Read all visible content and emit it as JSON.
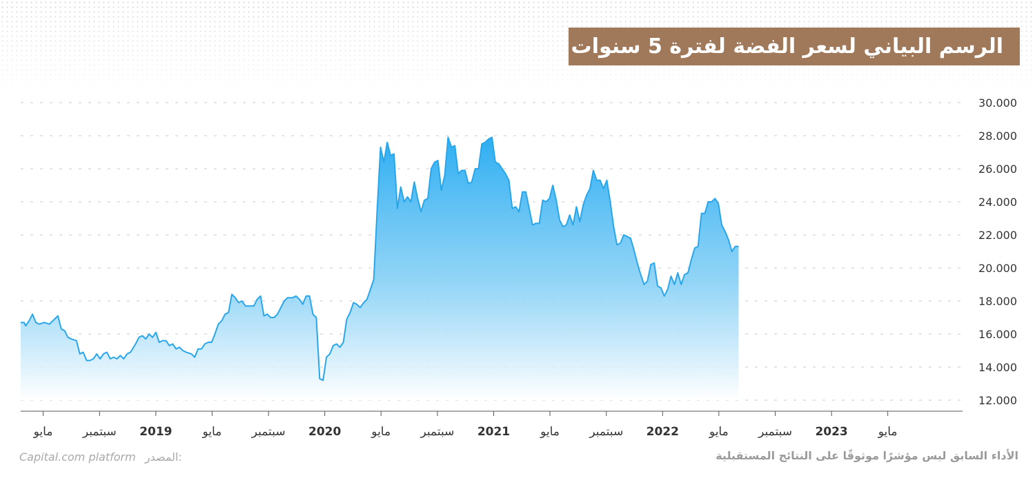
{
  "title": "الرسم البياني لسعر الفضة لفترة 5 سنوات",
  "footer": {
    "disclaimer": "الأداء السابق ليس مؤشرًا موثوقًا على النتائج المستقبلية",
    "source_label": "المصدر:",
    "source_name": "Capital.com platform"
  },
  "colors": {
    "title_bg": "#a0785a",
    "line": "#29a6ea",
    "fill_top": "#2eaef2",
    "fill_bottom": "#ffffff",
    "grid": "#c8c8c8"
  },
  "chart_data": {
    "type": "area",
    "title": "الرسم البياني لسعر الفضة لفترة 5 سنوات",
    "xlabel": "",
    "ylabel": "",
    "ylim": [
      12,
      30
    ],
    "xlim": [
      2018.2,
      2023.6
    ],
    "y_ticks": [
      12,
      14,
      16,
      18,
      20,
      22,
      24,
      26,
      28,
      30
    ],
    "y_tick_labels": [
      "12.000",
      "14.000",
      "16.000",
      "18.000",
      "20.000",
      "22.000",
      "24.000",
      "26.000",
      "28.000",
      "30.000"
    ],
    "x_ticks": [
      {
        "pos": 2018.333,
        "label": "مايو",
        "bold": false
      },
      {
        "pos": 2018.667,
        "label": "سبتمبر",
        "bold": false
      },
      {
        "pos": 2019.0,
        "label": "2019",
        "bold": true
      },
      {
        "pos": 2019.333,
        "label": "مايو",
        "bold": false
      },
      {
        "pos": 2019.667,
        "label": "سبتمبر",
        "bold": false
      },
      {
        "pos": 2020.0,
        "label": "2020",
        "bold": true
      },
      {
        "pos": 2020.333,
        "label": "مايو",
        "bold": false
      },
      {
        "pos": 2020.667,
        "label": "سبتمبر",
        "bold": false
      },
      {
        "pos": 2021.0,
        "label": "2021",
        "bold": true
      },
      {
        "pos": 2021.333,
        "label": "مايو",
        "bold": false
      },
      {
        "pos": 2021.667,
        "label": "سبتمبر",
        "bold": false
      },
      {
        "pos": 2022.0,
        "label": "2022",
        "bold": true
      },
      {
        "pos": 2022.333,
        "label": "مايو",
        "bold": false
      },
      {
        "pos": 2022.667,
        "label": "سبتمبر",
        "bold": false
      },
      {
        "pos": 2023.0,
        "label": "2023",
        "bold": true
      },
      {
        "pos": 2023.333,
        "label": "مايو",
        "bold": false
      }
    ],
    "grid": true,
    "series": [
      {
        "points": [
          [
            2018.2,
            16.7
          ],
          [
            2018.22,
            16.7
          ],
          [
            2018.23,
            16.5
          ],
          [
            2018.25,
            16.8
          ],
          [
            2018.27,
            17.2
          ],
          [
            2018.29,
            16.7
          ],
          [
            2018.31,
            16.6
          ],
          [
            2018.34,
            16.7
          ],
          [
            2018.37,
            16.6
          ],
          [
            2018.39,
            16.8
          ],
          [
            2018.42,
            17.1
          ],
          [
            2018.44,
            16.3
          ],
          [
            2018.46,
            16.2
          ],
          [
            2018.48,
            15.8
          ],
          [
            2018.5,
            15.7
          ],
          [
            2018.53,
            15.6
          ],
          [
            2018.55,
            14.8
          ],
          [
            2018.57,
            14.9
          ],
          [
            2018.59,
            14.4
          ],
          [
            2018.61,
            14.4
          ],
          [
            2018.63,
            14.5
          ],
          [
            2018.65,
            14.8
          ],
          [
            2018.67,
            14.5
          ],
          [
            2018.69,
            14.8
          ],
          [
            2018.71,
            14.9
          ],
          [
            2018.73,
            14.5
          ],
          [
            2018.75,
            14.6
          ],
          [
            2018.77,
            14.5
          ],
          [
            2018.79,
            14.7
          ],
          [
            2018.81,
            14.5
          ],
          [
            2018.83,
            14.8
          ],
          [
            2018.85,
            14.9
          ],
          [
            2018.88,
            15.4
          ],
          [
            2018.9,
            15.8
          ],
          [
            2018.92,
            15.9
          ],
          [
            2018.94,
            15.7
          ],
          [
            2018.96,
            16.0
          ],
          [
            2018.98,
            15.8
          ],
          [
            2019.0,
            16.1
          ],
          [
            2019.02,
            15.5
          ],
          [
            2019.04,
            15.6
          ],
          [
            2019.06,
            15.6
          ],
          [
            2019.08,
            15.3
          ],
          [
            2019.1,
            15.4
          ],
          [
            2019.12,
            15.1
          ],
          [
            2019.14,
            15.2
          ],
          [
            2019.16,
            15.0
          ],
          [
            2019.18,
            14.9
          ],
          [
            2019.21,
            14.8
          ],
          [
            2019.23,
            14.6
          ],
          [
            2019.25,
            15.1
          ],
          [
            2019.27,
            15.1
          ],
          [
            2019.29,
            15.4
          ],
          [
            2019.31,
            15.5
          ],
          [
            2019.33,
            15.5
          ],
          [
            2019.35,
            16.0
          ],
          [
            2019.37,
            16.6
          ],
          [
            2019.39,
            16.8
          ],
          [
            2019.41,
            17.2
          ],
          [
            2019.43,
            17.3
          ],
          [
            2019.45,
            18.4
          ],
          [
            2019.47,
            18.2
          ],
          [
            2019.49,
            17.9
          ],
          [
            2019.51,
            18.0
          ],
          [
            2019.53,
            17.7
          ],
          [
            2019.56,
            17.7
          ],
          [
            2019.58,
            17.7
          ],
          [
            2019.6,
            18.1
          ],
          [
            2019.62,
            18.3
          ],
          [
            2019.64,
            17.1
          ],
          [
            2019.66,
            17.2
          ],
          [
            2019.68,
            17.0
          ],
          [
            2019.7,
            17.0
          ],
          [
            2019.72,
            17.2
          ],
          [
            2019.74,
            17.6
          ],
          [
            2019.76,
            18.0
          ],
          [
            2019.78,
            18.2
          ],
          [
            2019.81,
            18.2
          ],
          [
            2019.83,
            18.3
          ],
          [
            2019.85,
            18.1
          ],
          [
            2019.87,
            17.8
          ],
          [
            2019.89,
            18.3
          ],
          [
            2019.91,
            18.3
          ],
          [
            2019.93,
            17.2
          ],
          [
            2019.95,
            17.0
          ],
          [
            2019.97,
            13.3
          ],
          [
            2019.99,
            13.2
          ],
          [
            2020.01,
            14.6
          ],
          [
            2020.03,
            14.8
          ],
          [
            2020.05,
            15.3
          ],
          [
            2020.07,
            15.4
          ],
          [
            2020.09,
            15.2
          ],
          [
            2020.11,
            15.5
          ],
          [
            2020.13,
            16.9
          ],
          [
            2020.15,
            17.3
          ],
          [
            2020.17,
            17.9
          ],
          [
            2020.19,
            17.8
          ],
          [
            2020.21,
            17.6
          ],
          [
            2020.23,
            17.9
          ],
          [
            2020.25,
            18.1
          ],
          [
            2020.27,
            18.7
          ],
          [
            2020.29,
            19.3
          ],
          [
            2020.31,
            23.5
          ],
          [
            2020.33,
            27.3
          ],
          [
            2020.35,
            26.4
          ],
          [
            2020.37,
            27.6
          ],
          [
            2020.39,
            26.8
          ],
          [
            2020.41,
            26.9
          ],
          [
            2020.43,
            23.6
          ],
          [
            2020.45,
            24.9
          ],
          [
            2020.47,
            24.0
          ],
          [
            2020.49,
            24.3
          ],
          [
            2020.51,
            24.0
          ],
          [
            2020.53,
            25.2
          ],
          [
            2020.55,
            24.2
          ],
          [
            2020.57,
            23.4
          ],
          [
            2020.59,
            24.1
          ],
          [
            2020.61,
            24.2
          ],
          [
            2020.63,
            26.0
          ],
          [
            2020.65,
            26.4
          ],
          [
            2020.67,
            26.5
          ],
          [
            2020.69,
            24.7
          ],
          [
            2020.71,
            25.6
          ],
          [
            2020.73,
            27.9
          ],
          [
            2020.75,
            27.3
          ],
          [
            2020.77,
            27.4
          ],
          [
            2020.79,
            25.7
          ],
          [
            2020.81,
            25.9
          ],
          [
            2020.83,
            25.9
          ],
          [
            2020.85,
            25.1
          ],
          [
            2020.87,
            25.2
          ],
          [
            2020.89,
            26.0
          ],
          [
            2020.91,
            26.0
          ],
          [
            2020.93,
            27.5
          ],
          [
            2020.95,
            27.6
          ],
          [
            2020.97,
            27.8
          ],
          [
            2020.99,
            27.9
          ],
          [
            2021.01,
            26.4
          ],
          [
            2021.03,
            26.3
          ],
          [
            2021.05,
            26.0
          ],
          [
            2021.07,
            25.7
          ],
          [
            2021.09,
            25.3
          ],
          [
            2021.11,
            23.6
          ],
          [
            2021.13,
            23.7
          ],
          [
            2021.15,
            23.4
          ],
          [
            2021.17,
            24.6
          ],
          [
            2021.19,
            24.6
          ],
          [
            2021.21,
            23.6
          ],
          [
            2021.23,
            22.6
          ],
          [
            2021.25,
            22.7
          ],
          [
            2021.27,
            22.7
          ],
          [
            2021.29,
            24.1
          ],
          [
            2021.31,
            24.0
          ],
          [
            2021.33,
            24.2
          ],
          [
            2021.35,
            25.0
          ],
          [
            2021.37,
            24.1
          ],
          [
            2021.39,
            22.9
          ],
          [
            2021.41,
            22.5
          ],
          [
            2021.43,
            22.6
          ],
          [
            2021.45,
            23.2
          ],
          [
            2021.47,
            22.6
          ],
          [
            2021.49,
            23.7
          ],
          [
            2021.51,
            22.8
          ],
          [
            2021.53,
            23.8
          ],
          [
            2021.55,
            24.4
          ],
          [
            2021.57,
            24.8
          ],
          [
            2021.59,
            25.9
          ],
          [
            2021.61,
            25.3
          ],
          [
            2021.63,
            25.3
          ],
          [
            2021.65,
            24.8
          ],
          [
            2021.67,
            25.3
          ],
          [
            2021.69,
            24.0
          ],
          [
            2021.71,
            22.5
          ],
          [
            2021.73,
            21.4
          ],
          [
            2021.75,
            21.5
          ],
          [
            2021.77,
            22.0
          ],
          [
            2021.79,
            21.9
          ],
          [
            2021.81,
            21.8
          ],
          [
            2021.83,
            21.1
          ],
          [
            2021.85,
            20.3
          ],
          [
            2021.87,
            19.6
          ],
          [
            2021.89,
            19.0
          ],
          [
            2021.91,
            19.2
          ],
          [
            2021.93,
            20.2
          ],
          [
            2021.95,
            20.3
          ],
          [
            2021.97,
            18.9
          ],
          [
            2021.99,
            18.8
          ],
          [
            2022.01,
            18.3
          ],
          [
            2022.03,
            18.7
          ],
          [
            2022.05,
            19.5
          ],
          [
            2022.07,
            19.0
          ],
          [
            2022.09,
            19.7
          ],
          [
            2022.11,
            19.0
          ],
          [
            2022.13,
            19.6
          ],
          [
            2022.15,
            19.7
          ],
          [
            2022.17,
            20.5
          ],
          [
            2022.19,
            21.2
          ],
          [
            2022.21,
            21.3
          ],
          [
            2022.23,
            23.3
          ],
          [
            2022.25,
            23.3
          ],
          [
            2022.27,
            24.0
          ],
          [
            2022.29,
            24.0
          ],
          [
            2022.31,
            24.2
          ],
          [
            2022.33,
            23.9
          ],
          [
            2022.35,
            22.6
          ],
          [
            2022.37,
            22.2
          ],
          [
            2022.39,
            21.7
          ],
          [
            2022.41,
            21.0
          ],
          [
            2022.43,
            21.3
          ],
          [
            2022.45,
            21.3
          ]
        ]
      }
    ]
  }
}
